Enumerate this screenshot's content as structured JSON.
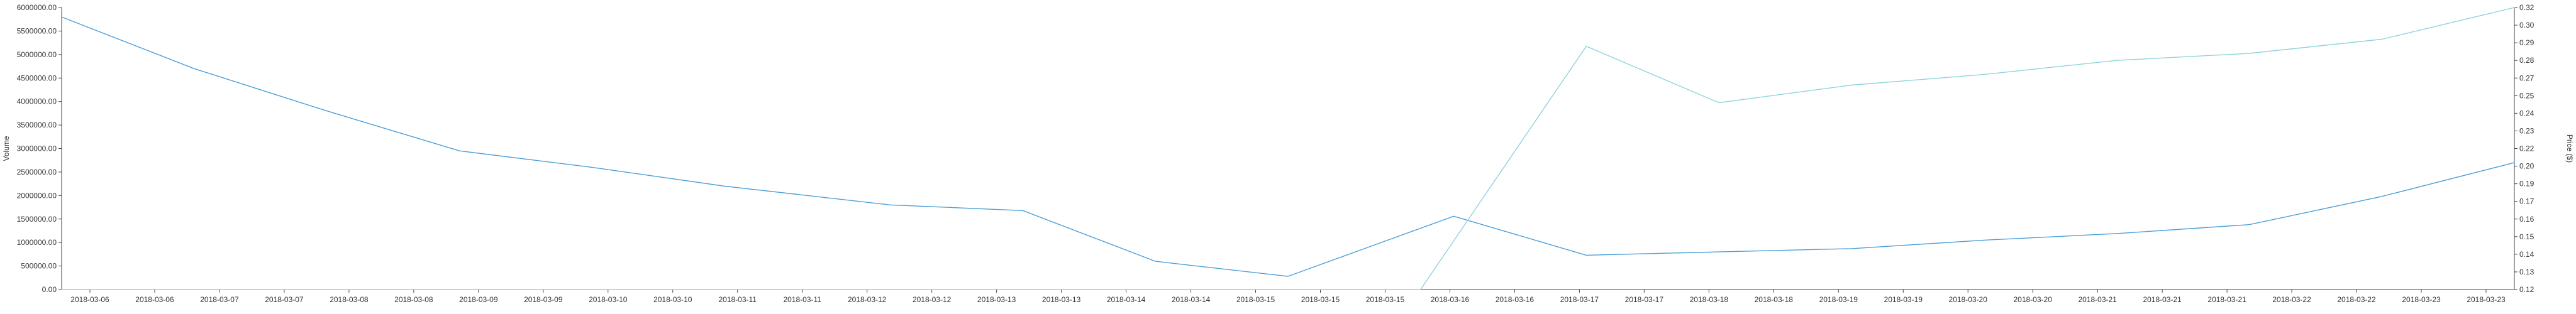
{
  "chart_data": {
    "type": "line",
    "title": "",
    "grid": false,
    "x": [
      "2018-03-06",
      "2018-03-06",
      "2018-03-07",
      "2018-03-07",
      "2018-03-08",
      "2018-03-08",
      "2018-03-09",
      "2018-03-09",
      "2018-03-10",
      "2018-03-10",
      "2018-03-11",
      "2018-03-11",
      "2018-03-12",
      "2018-03-12",
      "2018-03-13",
      "2018-03-13",
      "2018-03-14",
      "2018-03-14",
      "2018-03-15",
      "2018-03-15",
      "2018-03-15",
      "2018-03-16",
      "2018-03-16",
      "2018-03-17",
      "2018-03-17",
      "2018-03-18",
      "2018-03-18",
      "2018-03-19",
      "2018-03-19",
      "2018-03-20",
      "2018-03-20",
      "2018-03-21",
      "2018-03-21",
      "2018-03-21",
      "2018-03-22",
      "2018-03-22",
      "2018-03-23",
      "2018-03-23"
    ],
    "y_left": {
      "label": "Volume",
      "ylim": [
        0,
        6000000
      ],
      "ticks": [
        "0.00",
        "500000.00",
        "1000000.00",
        "1500000.00",
        "2000000.00",
        "2500000.00",
        "3000000.00",
        "3500000.00",
        "4000000.00",
        "4500000.00",
        "5000000.00",
        "5500000.00",
        "6000000.00"
      ]
    },
    "y_right": {
      "label": "Price ($)",
      "ylim": [
        0.12,
        0.32
      ],
      "ticks": [
        "0.12",
        "0.13",
        "0.14",
        "0.15",
        "0.16",
        "0.17",
        "0.19",
        "0.20",
        "0.22",
        "0.23",
        "0.24",
        "0.25",
        "0.27",
        "0.28",
        "0.29",
        "0.30",
        "0.32"
      ]
    },
    "series": [
      {
        "axis": "left",
        "color": "#4a9fd8",
        "points": [
          {
            "x": 0,
            "y": 5800000
          },
          {
            "x": 4,
            "y": 4700000
          },
          {
            "x": 8,
            "y": 3800000
          },
          {
            "x": 12,
            "y": 2950000
          },
          {
            "x": 16,
            "y": 2600000
          },
          {
            "x": 20,
            "y": 2200000
          },
          {
            "x": 25,
            "y": 1800000
          },
          {
            "x": 29,
            "y": 1680000
          },
          {
            "x": 33,
            "y": 600000
          },
          {
            "x": 37,
            "y": 280000
          },
          {
            "x": 42,
            "y": 1560000
          },
          {
            "x": 46,
            "y": 730000
          },
          {
            "x": 50,
            "y": 800000
          },
          {
            "x": 54,
            "y": 870000
          },
          {
            "x": 58,
            "y": 1050000
          },
          {
            "x": 62,
            "y": 1190000
          },
          {
            "x": 66,
            "y": 1380000
          },
          {
            "x": 70,
            "y": 1980000
          },
          {
            "x": 74,
            "y": 2700000
          }
        ]
      },
      {
        "axis": "right",
        "color": "#8fd3dc",
        "points": [
          {
            "x": 0,
            "y": 0.12
          },
          {
            "x": 41,
            "y": 0.12
          },
          {
            "x": 46,
            "y": 0.2925
          },
          {
            "x": 50,
            "y": 0.2525
          },
          {
            "x": 54,
            "y": 0.265
          },
          {
            "x": 58,
            "y": 0.2725
          },
          {
            "x": 62,
            "y": 0.2825
          },
          {
            "x": 66,
            "y": 0.2875
          },
          {
            "x": 70,
            "y": 0.2975
          },
          {
            "x": 74,
            "y": 0.32
          }
        ]
      }
    ]
  }
}
